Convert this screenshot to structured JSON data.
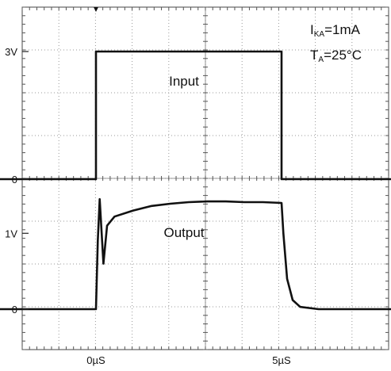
{
  "chart_data": [
    {
      "type": "line",
      "title": "",
      "xlabel": "",
      "ylabel": "",
      "xlim_us": [
        -3,
        8
      ],
      "ylim_v": [
        -0.8,
        4.2
      ],
      "x_tick_labels": [
        {
          "x_us": 0,
          "text": "0µS"
        },
        {
          "x_us": 5,
          "text": "5µS"
        }
      ],
      "y_tick_labels": [
        {
          "v": 3,
          "text": "3V"
        },
        {
          "v": 0,
          "text": "0"
        }
      ],
      "series": [
        {
          "name": "Input",
          "color": "#111111",
          "x_us": [
            -3,
            0,
            0,
            5,
            5,
            8
          ],
          "y_v": [
            0,
            0,
            3,
            3,
            0,
            0
          ]
        }
      ],
      "annotations": {
        "condition_1_main": "I",
        "condition_1_sub": "KA",
        "condition_1_rest": "=1mA",
        "condition_2_main": "T",
        "condition_2_sub": "A",
        "condition_2_rest": "=25°C"
      }
    },
    {
      "type": "line",
      "title": "",
      "xlabel": "",
      "ylabel": "",
      "xlim_us": [
        -3,
        8
      ],
      "ylim_v": [
        -0.8,
        1.8
      ],
      "y_tick_labels": [
        {
          "v": 1,
          "text": "1V"
        },
        {
          "v": 0,
          "text": "0"
        }
      ],
      "series": [
        {
          "name": "Output",
          "color": "#111111",
          "x_us": [
            -3,
            0,
            0.05,
            0.1,
            0.2,
            0.3,
            0.5,
            1.0,
            1.5,
            2.0,
            2.5,
            3.0,
            3.5,
            4.0,
            4.5,
            5.0,
            5.05,
            5.15,
            5.3,
            5.5,
            6.0,
            8.0
          ],
          "y_v": [
            0,
            0,
            0.9,
            1.45,
            0.6,
            1.1,
            1.22,
            1.3,
            1.36,
            1.39,
            1.41,
            1.42,
            1.42,
            1.41,
            1.41,
            1.4,
            1.0,
            0.4,
            0.12,
            0.03,
            0,
            0
          ]
        }
      ]
    }
  ]
}
